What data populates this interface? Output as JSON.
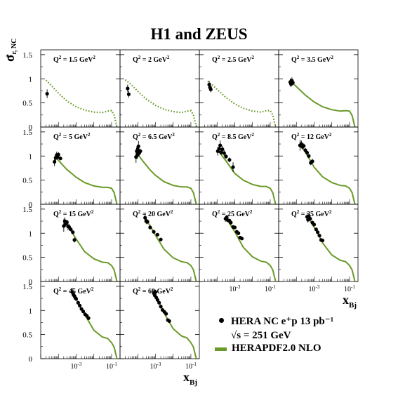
{
  "title": "H1 and ZEUS",
  "ylabel": "σ⁺r, NC",
  "xlabel": "x_Bj",
  "legend": {
    "data_label": "HERA NC e⁺p 13 pb⁻¹",
    "sqrt_s": "√s = 251 GeV",
    "fit_label": "HERAPDF2.0 NLO"
  },
  "colors": {
    "fit": "#6a9a28",
    "data": "#000000"
  },
  "chart_data": {
    "type": "scatter",
    "title": "H1 and ZEUS",
    "xlabel": "x_Bj",
    "ylabel": "σ⁺r, NC",
    "xscale": "log",
    "xlim": [
      1e-05,
      0.3
    ],
    "ylim": [
      0,
      1.6
    ],
    "yticks": [
      0,
      0.5,
      1,
      1.5
    ],
    "xtick_labels": [
      "10⁻³",
      "10⁻¹"
    ],
    "legend_position": "bottom-right",
    "panels": [
      {
        "label": "Q² = 1.5 GeV²",
        "fit_style": "dotted",
        "fit": {
          "x": [
            2e-05,
            4e-05,
            0.0001,
            0.0003,
            0.001,
            0.003,
            0.01,
            0.03,
            0.06,
            0.1,
            0.14,
            0.2
          ],
          "y": [
            0.97,
            0.86,
            0.7,
            0.54,
            0.42,
            0.35,
            0.31,
            0.3,
            0.33,
            0.34,
            0.25,
            0.0
          ]
        },
        "points": [
          {
            "x": 2.3e-05,
            "y": 0.69,
            "err": 0.09
          }
        ]
      },
      {
        "label": "Q² = 2 GeV²",
        "fit_style": "dotted",
        "fit": {
          "x": [
            2e-05,
            4e-05,
            0.0001,
            0.0003,
            0.001,
            0.003,
            0.01,
            0.03,
            0.06,
            0.1,
            0.14,
            0.2
          ],
          "y": [
            0.98,
            0.89,
            0.74,
            0.58,
            0.45,
            0.37,
            0.32,
            0.3,
            0.33,
            0.34,
            0.25,
            0.0
          ]
        },
        "points": [
          {
            "x": 2.7e-05,
            "y": 0.8,
            "err": 0.08
          },
          {
            "x": 3.1e-05,
            "y": 0.68,
            "err": 0.07
          }
        ]
      },
      {
        "label": "Q² = 2.5 GeV²",
        "fit_style": "dotted",
        "fit": {
          "x": [
            3e-05,
            6e-05,
            0.0001,
            0.0003,
            0.001,
            0.003,
            0.01,
            0.03,
            0.06,
            0.1,
            0.14,
            0.2
          ],
          "y": [
            0.95,
            0.86,
            0.78,
            0.62,
            0.48,
            0.39,
            0.33,
            0.31,
            0.34,
            0.34,
            0.25,
            0.0
          ]
        },
        "points": [
          {
            "x": 3.6e-05,
            "y": 0.88,
            "err": 0.08
          },
          {
            "x": 4e-05,
            "y": 0.82,
            "err": 0.07
          },
          {
            "x": 4.4e-05,
            "y": 0.78,
            "err": 0.06
          }
        ]
      },
      {
        "label": "Q² = 3.5 GeV²",
        "fit_style": "solid",
        "fit": {
          "x": [
            4e-05,
            0.0001,
            0.0003,
            0.001,
            0.003,
            0.01,
            0.03,
            0.06,
            0.1,
            0.14,
            0.2
          ],
          "y": [
            0.97,
            0.84,
            0.67,
            0.52,
            0.42,
            0.36,
            0.33,
            0.34,
            0.33,
            0.24,
            0.0
          ]
        },
        "points": [
          {
            "x": 4.5e-05,
            "y": 0.93,
            "err": 0.08
          },
          {
            "x": 5e-05,
            "y": 0.89,
            "err": 0.06
          },
          {
            "x": 5.6e-05,
            "y": 0.96,
            "err": 0.07
          },
          {
            "x": 6.3e-05,
            "y": 0.92,
            "err": 0.05
          }
        ]
      },
      {
        "label": "Q² = 5 GeV²",
        "fit_style": "solid",
        "fit": {
          "x": [
            6e-05,
            0.0001,
            0.0003,
            0.001,
            0.003,
            0.01,
            0.03,
            0.06,
            0.1,
            0.14,
            0.2
          ],
          "y": [
            1.0,
            0.91,
            0.72,
            0.56,
            0.45,
            0.38,
            0.35,
            0.35,
            0.33,
            0.24,
            0.0
          ]
        },
        "points": [
          {
            "x": 6e-05,
            "y": 0.88,
            "err": 0.09
          },
          {
            "x": 7e-05,
            "y": 0.96,
            "err": 0.08
          },
          {
            "x": 8e-05,
            "y": 1.02,
            "err": 0.07
          },
          {
            "x": 9e-05,
            "y": 0.98,
            "err": 0.06
          },
          {
            "x": 0.0001,
            "y": 1.03,
            "err": 0.05
          },
          {
            "x": 0.00013,
            "y": 0.95,
            "err": 0.04
          }
        ]
      },
      {
        "label": "Q² = 6.5 GeV²",
        "fit_style": "solid",
        "fit": {
          "x": [
            8e-05,
            0.0002,
            0.0005,
            0.001,
            0.003,
            0.01,
            0.03,
            0.06,
            0.1,
            0.14,
            0.2
          ],
          "y": [
            1.08,
            0.89,
            0.71,
            0.6,
            0.47,
            0.39,
            0.36,
            0.36,
            0.33,
            0.24,
            0.0
          ]
        },
        "points": [
          {
            "x": 8e-05,
            "y": 0.98,
            "err": 0.12
          },
          {
            "x": 8.8e-05,
            "y": 1.1,
            "err": 0.1
          },
          {
            "x": 9.5e-05,
            "y": 1.02,
            "err": 0.08
          },
          {
            "x": 0.0001,
            "y": 1.14,
            "err": 0.09
          },
          {
            "x": 0.00011,
            "y": 1.2,
            "err": 0.11
          },
          {
            "x": 0.00012,
            "y": 1.06,
            "err": 0.06
          },
          {
            "x": 0.00014,
            "y": 1.1,
            "err": 0.05
          }
        ]
      },
      {
        "label": "Q² = 8.5 GeV²",
        "fit_style": "solid",
        "fit": {
          "x": [
            0.00011,
            0.0003,
            0.001,
            0.003,
            0.01,
            0.03,
            0.06,
            0.1,
            0.14,
            0.2
          ],
          "y": [
            1.12,
            0.91,
            0.64,
            0.5,
            0.41,
            0.37,
            0.37,
            0.33,
            0.24,
            0.0
          ]
        },
        "points": [
          {
            "x": 0.00011,
            "y": 1.1,
            "err": 0.09
          },
          {
            "x": 0.00013,
            "y": 1.15,
            "err": 0.08
          },
          {
            "x": 0.00015,
            "y": 1.22,
            "err": 0.1
          },
          {
            "x": 0.00017,
            "y": 1.08,
            "err": 0.06
          },
          {
            "x": 0.0002,
            "y": 1.14,
            "err": 0.07
          },
          {
            "x": 0.00025,
            "y": 1.06,
            "err": 0.06
          },
          {
            "x": 0.00032,
            "y": 0.99,
            "err": 0.05
          },
          {
            "x": 0.0005,
            "y": 0.92,
            "err": 0.05
          },
          {
            "x": 0.0008,
            "y": 0.77,
            "err": 0.1
          }
        ]
      },
      {
        "label": "Q² = 12 GeV²",
        "fit_style": "solid",
        "fit": {
          "x": [
            0.00016,
            0.0003,
            0.001,
            0.003,
            0.01,
            0.03,
            0.06,
            0.1,
            0.14,
            0.2
          ],
          "y": [
            1.27,
            1.1,
            0.77,
            0.57,
            0.45,
            0.39,
            0.38,
            0.33,
            0.24,
            0.0
          ]
        },
        "points": [
          {
            "x": 0.00016,
            "y": 1.22,
            "err": 0.11
          },
          {
            "x": 0.00019,
            "y": 1.25,
            "err": 0.07
          },
          {
            "x": 0.00022,
            "y": 1.19,
            "err": 0.06
          },
          {
            "x": 0.00026,
            "y": 1.21,
            "err": 0.05
          },
          {
            "x": 0.00032,
            "y": 1.12,
            "err": 0.05
          },
          {
            "x": 0.0004,
            "y": 1.07,
            "err": 0.04
          },
          {
            "x": 0.0005,
            "y": 1.0,
            "err": 0.04
          },
          {
            "x": 0.00065,
            "y": 0.86,
            "err": 0.05
          },
          {
            "x": 0.0008,
            "y": 0.89,
            "err": 0.05
          }
        ]
      },
      {
        "label": "Q² = 15 GeV²",
        "fit_style": "solid",
        "fit": {
          "x": [
            0.0002,
            0.0004,
            0.001,
            0.003,
            0.01,
            0.03,
            0.06,
            0.1,
            0.14,
            0.2
          ],
          "y": [
            1.3,
            1.12,
            0.88,
            0.62,
            0.47,
            0.4,
            0.39,
            0.33,
            0.24,
            0.0
          ]
        },
        "points": [
          {
            "x": 0.0002,
            "y": 1.15,
            "err": 0.12
          },
          {
            "x": 0.00023,
            "y": 1.25,
            "err": 0.08
          },
          {
            "x": 0.00026,
            "y": 1.2,
            "err": 0.06
          },
          {
            "x": 0.0003,
            "y": 1.23,
            "err": 0.05
          },
          {
            "x": 0.00035,
            "y": 1.14,
            "err": 0.08
          },
          {
            "x": 0.0004,
            "y": 1.13,
            "err": 0.06
          },
          {
            "x": 0.0005,
            "y": 1.08,
            "err": 0.04
          },
          {
            "x": 0.00065,
            "y": 1.02,
            "err": 0.04
          },
          {
            "x": 0.0008,
            "y": 0.86,
            "err": 0.05
          }
        ]
      },
      {
        "label": "Q² = 20 GeV²",
        "fit_style": "solid",
        "fit": {
          "x": [
            0.00026,
            0.0005,
            0.001,
            0.003,
            0.01,
            0.03,
            0.06,
            0.1,
            0.14,
            0.2
          ],
          "y": [
            1.32,
            1.15,
            0.96,
            0.67,
            0.49,
            0.41,
            0.39,
            0.33,
            0.24,
            0.0
          ]
        },
        "points": [
          {
            "x": 0.00026,
            "y": 1.32,
            "err": 0.1
          },
          {
            "x": 0.0003,
            "y": 1.25,
            "err": 0.06
          },
          {
            "x": 0.00035,
            "y": 1.24,
            "err": 0.05
          },
          {
            "x": 0.0005,
            "y": 1.12,
            "err": 0.04
          },
          {
            "x": 0.0008,
            "y": 1.03,
            "err": 0.04
          },
          {
            "x": 0.0013,
            "y": 0.97,
            "err": 0.03
          },
          {
            "x": 0.002,
            "y": 0.87,
            "err": 0.03
          }
        ]
      },
      {
        "label": "Q² = 25 GeV²",
        "fit_style": "solid",
        "fit": {
          "x": [
            0.0003,
            0.0006,
            0.001,
            0.003,
            0.01,
            0.03,
            0.06,
            0.1,
            0.14,
            0.2
          ],
          "y": [
            1.33,
            1.16,
            1.03,
            0.71,
            0.51,
            0.42,
            0.4,
            0.33,
            0.24,
            0.0
          ]
        },
        "points": [
          {
            "x": 0.0003,
            "y": 1.3,
            "err": 0.06
          },
          {
            "x": 0.00035,
            "y": 1.33,
            "err": 0.05
          },
          {
            "x": 0.0004,
            "y": 1.27,
            "err": 0.04
          },
          {
            "x": 0.0005,
            "y": 1.26,
            "err": 0.04
          },
          {
            "x": 0.0006,
            "y": 1.22,
            "err": 0.04
          },
          {
            "x": 0.0008,
            "y": 1.13,
            "err": 0.04
          },
          {
            "x": 0.001,
            "y": 1.12,
            "err": 0.03
          },
          {
            "x": 0.0013,
            "y": 1.03,
            "err": 0.03
          },
          {
            "x": 0.0016,
            "y": 1.0,
            "err": 0.03
          },
          {
            "x": 0.002,
            "y": 0.91,
            "err": 0.03
          },
          {
            "x": 0.0025,
            "y": 0.89,
            "err": 0.03
          }
        ]
      },
      {
        "label": "Q² = 35 GeV²",
        "fit_style": "solid",
        "fit": {
          "x": [
            0.0004,
            0.0008,
            0.0015,
            0.003,
            0.01,
            0.03,
            0.06,
            0.1,
            0.14,
            0.2
          ],
          "y": [
            1.36,
            1.18,
            1.02,
            0.8,
            0.55,
            0.44,
            0.41,
            0.33,
            0.24,
            0.0
          ]
        },
        "points": [
          {
            "x": 0.0004,
            "y": 1.34,
            "err": 0.08
          },
          {
            "x": 0.00045,
            "y": 1.28,
            "err": 0.06
          },
          {
            "x": 0.0005,
            "y": 1.35,
            "err": 0.05
          },
          {
            "x": 0.0006,
            "y": 1.3,
            "err": 0.04
          },
          {
            "x": 0.0008,
            "y": 1.22,
            "err": 0.04
          },
          {
            "x": 0.001,
            "y": 1.18,
            "err": 0.03
          },
          {
            "x": 0.0013,
            "y": 1.08,
            "err": 0.03
          },
          {
            "x": 0.0016,
            "y": 1.02,
            "err": 0.03
          },
          {
            "x": 0.002,
            "y": 0.95,
            "err": 0.03
          },
          {
            "x": 0.0025,
            "y": 0.86,
            "err": 0.03
          },
          {
            "x": 0.003,
            "y": 0.85,
            "err": 0.03
          }
        ]
      },
      {
        "label": "Q² = 45 GeV²",
        "fit_style": "solid",
        "fit": {
          "x": [
            0.0006,
            0.001,
            0.002,
            0.004,
            0.01,
            0.03,
            0.06,
            0.1,
            0.14,
            0.2
          ],
          "y": [
            1.38,
            1.23,
            1.03,
            0.84,
            0.59,
            0.45,
            0.42,
            0.33,
            0.24,
            0.0
          ]
        },
        "points": [
          {
            "x": 0.0006,
            "y": 1.38,
            "err": 0.09
          },
          {
            "x": 0.0007,
            "y": 1.33,
            "err": 0.06
          },
          {
            "x": 0.0008,
            "y": 1.3,
            "err": 0.05
          },
          {
            "x": 0.0009,
            "y": 1.26,
            "err": 0.04
          },
          {
            "x": 0.001,
            "y": 1.24,
            "err": 0.04
          },
          {
            "x": 0.0013,
            "y": 1.16,
            "err": 0.03
          },
          {
            "x": 0.0016,
            "y": 1.1,
            "err": 0.03
          },
          {
            "x": 0.002,
            "y": 1.03,
            "err": 0.03
          },
          {
            "x": 0.0025,
            "y": 0.98,
            "err": 0.03
          },
          {
            "x": 0.0032,
            "y": 0.92,
            "err": 0.03
          },
          {
            "x": 0.004,
            "y": 0.89,
            "err": 0.03
          },
          {
            "x": 0.005,
            "y": 0.84,
            "err": 0.03
          }
        ]
      },
      {
        "label": "Q² = 60 GeV²",
        "fit_style": "solid",
        "fit": {
          "x": [
            0.0008,
            0.0013,
            0.002,
            0.004,
            0.01,
            0.03,
            0.06,
            0.1,
            0.14,
            0.2
          ],
          "y": [
            1.38,
            1.25,
            1.09,
            0.87,
            0.62,
            0.47,
            0.43,
            0.33,
            0.24,
            0.0
          ]
        },
        "points": [
          {
            "x": 0.0008,
            "y": 1.36,
            "err": 0.08
          },
          {
            "x": 0.0009,
            "y": 1.32,
            "err": 0.05
          },
          {
            "x": 0.001,
            "y": 1.38,
            "err": 0.05
          },
          {
            "x": 0.0011,
            "y": 1.27,
            "err": 0.04
          },
          {
            "x": 0.0013,
            "y": 1.22,
            "err": 0.04
          },
          {
            "x": 0.0016,
            "y": 1.16,
            "err": 0.03
          },
          {
            "x": 0.002,
            "y": 1.08,
            "err": 0.03
          },
          {
            "x": 0.0025,
            "y": 1.01,
            "err": 0.03
          },
          {
            "x": 0.0032,
            "y": 0.97,
            "err": 0.03
          },
          {
            "x": 0.004,
            "y": 0.93,
            "err": 0.03
          },
          {
            "x": 0.005,
            "y": 0.8,
            "err": 0.03
          },
          {
            "x": 0.006,
            "y": 0.78,
            "err": 0.03
          }
        ]
      }
    ]
  }
}
